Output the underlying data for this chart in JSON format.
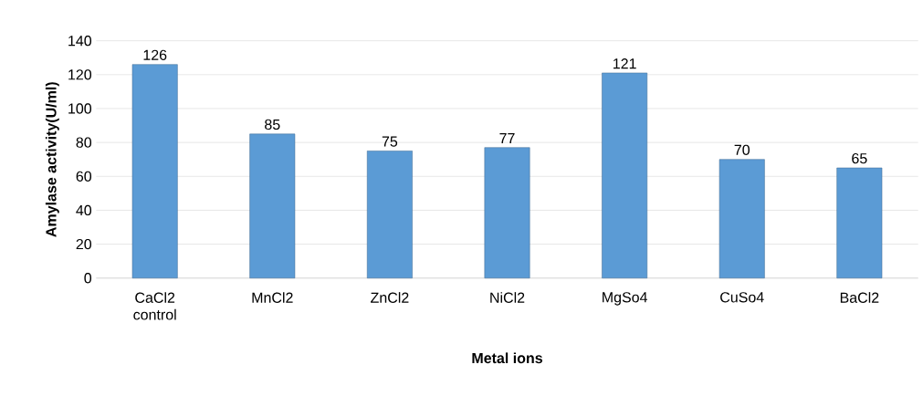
{
  "chart_data": {
    "type": "bar",
    "xlabel": "Metal ions",
    "ylabel": "Amylase activity(U/ml)",
    "categories": [
      "CaCl2 control",
      "MnCl2",
      "ZnCl2",
      "NiCl2",
      "MgSo4",
      "CuSo4",
      "BaCl2"
    ],
    "values": [
      126,
      85,
      75,
      77,
      121,
      70,
      65
    ],
    "color": "#5b9bd5",
    "ylim": [
      0,
      140
    ],
    "yticks": [
      0,
      20,
      40,
      60,
      80,
      100,
      120,
      140
    ],
    "grid": "y",
    "data_labels": true
  }
}
